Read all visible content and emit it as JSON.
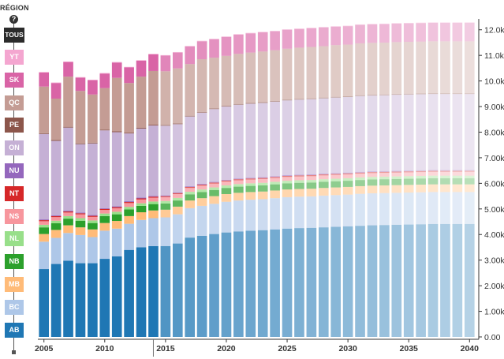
{
  "legend": {
    "title": "RÉGION",
    "help_icon": "question-icon",
    "help_glyph": "?",
    "all_label": "TOUS",
    "all_color": "#2b2b2b",
    "regions": [
      {
        "code": "YT",
        "color": "#f4a6d0"
      },
      {
        "code": "SK",
        "color": "#d964a6"
      },
      {
        "code": "QC",
        "color": "#c49c94"
      },
      {
        "code": "PE",
        "color": "#8c564b"
      },
      {
        "code": "ON",
        "color": "#c5b0d5"
      },
      {
        "code": "NU",
        "color": "#9467bd"
      },
      {
        "code": "NT",
        "color": "#d62728"
      },
      {
        "code": "NS",
        "color": "#f7969d"
      },
      {
        "code": "NL",
        "color": "#98df8a"
      },
      {
        "code": "NB",
        "color": "#2ca02c"
      },
      {
        "code": "MB",
        "color": "#ffbb78"
      },
      {
        "code": "BC",
        "color": "#aec7e8"
      },
      {
        "code": "AB",
        "color": "#1f77b4"
      }
    ]
  },
  "chart_data": {
    "type": "bar",
    "stacked": true,
    "x": [
      2005,
      2006,
      2007,
      2008,
      2009,
      2010,
      2011,
      2012,
      2013,
      2014,
      2015,
      2016,
      2017,
      2018,
      2019,
      2020,
      2021,
      2022,
      2023,
      2024,
      2025,
      2026,
      2027,
      2028,
      2029,
      2030,
      2031,
      2032,
      2033,
      2034,
      2035,
      2036,
      2037,
      2038,
      2039,
      2040
    ],
    "x_ticks": [
      "2005",
      "2010",
      "2015",
      "2020",
      "2025",
      "2030",
      "2035",
      "2040"
    ],
    "y_ticks": [
      "0.00",
      "1.00k",
      "2.00k",
      "3.00k",
      "4.00k",
      "5.00k",
      "6.00k",
      "7.00k",
      "8.00k",
      "9.00k",
      "10.0k",
      "11.0k",
      "12.0k"
    ],
    "ylim": [
      0,
      12300
    ],
    "grid": false,
    "highlight_year": 2014,
    "projection_start": 2015,
    "series": [
      {
        "name": "AB",
        "color": "#1f77b4",
        "values": [
          2650,
          2850,
          2980,
          2880,
          2880,
          3050,
          3150,
          3400,
          3500,
          3550,
          3550,
          3650,
          3880,
          3950,
          4020,
          4080,
          4120,
          4150,
          4170,
          4200,
          4230,
          4250,
          4260,
          4280,
          4300,
          4320,
          4340,
          4360,
          4370,
          4380,
          4390,
          4400,
          4410,
          4410,
          4410,
          4410
        ]
      },
      {
        "name": "BC",
        "color": "#aec7e8",
        "values": [
          1070,
          1020,
          1080,
          1100,
          1020,
          1100,
          1080,
          1020,
          1070,
          1090,
          1120,
          1140,
          1150,
          1170,
          1180,
          1200,
          1210,
          1210,
          1210,
          1220,
          1230,
          1230,
          1230,
          1240,
          1240,
          1240,
          1250,
          1250,
          1250,
          1250,
          1250,
          1250,
          1250,
          1250,
          1250,
          1250
        ]
      },
      {
        "name": "MB",
        "color": "#ffbb78",
        "values": [
          300,
          310,
          300,
          300,
          300,
          300,
          300,
          300,
          300,
          300,
          300,
          300,
          300,
          300,
          300,
          300,
          300,
          300,
          300,
          300,
          300,
          300,
          300,
          300,
          300,
          300,
          300,
          300,
          300,
          300,
          300,
          300,
          300,
          300,
          300,
          300
        ]
      },
      {
        "name": "NB",
        "color": "#2ca02c",
        "values": [
          260,
          260,
          260,
          260,
          250,
          270,
          260,
          260,
          250,
          250,
          240,
          240,
          240,
          240,
          240,
          240,
          240,
          240,
          240,
          240,
          240,
          240,
          240,
          240,
          240,
          240,
          240,
          240,
          240,
          240,
          240,
          240,
          240,
          240,
          240,
          240
        ]
      },
      {
        "name": "NL",
        "color": "#98df8a",
        "values": [
          100,
          100,
          100,
          100,
          100,
          100,
          100,
          100,
          100,
          100,
          100,
          100,
          100,
          100,
          100,
          100,
          100,
          100,
          100,
          100,
          100,
          100,
          100,
          100,
          100,
          100,
          100,
          100,
          100,
          100,
          100,
          100,
          100,
          100,
          100,
          100
        ]
      },
      {
        "name": "NS",
        "color": "#f7969d",
        "values": [
          140,
          140,
          140,
          150,
          140,
          140,
          140,
          150,
          150,
          150,
          150,
          150,
          150,
          150,
          150,
          150,
          150,
          150,
          150,
          150,
          150,
          150,
          150,
          150,
          150,
          150,
          150,
          150,
          150,
          150,
          150,
          150,
          150,
          150,
          150,
          150
        ]
      },
      {
        "name": "NT",
        "color": "#d62728",
        "values": [
          40,
          40,
          40,
          40,
          40,
          40,
          40,
          40,
          40,
          40,
          40,
          40,
          40,
          40,
          40,
          40,
          40,
          40,
          40,
          40,
          40,
          40,
          40,
          40,
          40,
          40,
          40,
          40,
          40,
          40,
          40,
          40,
          40,
          40,
          40,
          40
        ]
      },
      {
        "name": "NU",
        "color": "#9467bd",
        "values": [
          30,
          30,
          30,
          30,
          30,
          30,
          30,
          30,
          30,
          30,
          30,
          30,
          30,
          30,
          30,
          30,
          30,
          30,
          30,
          30,
          30,
          30,
          30,
          30,
          30,
          30,
          30,
          30,
          30,
          30,
          30,
          30,
          30,
          30,
          30,
          30
        ]
      },
      {
        "name": "ON",
        "color": "#c5b0d5",
        "values": [
          3340,
          2910,
          3250,
          2670,
          2800,
          3040,
          2900,
          2650,
          2700,
          2750,
          2720,
          2660,
          2720,
          2780,
          2840,
          2860,
          2880,
          2890,
          2900,
          2910,
          2920,
          2930,
          2940,
          2940,
          2950,
          2950,
          2960,
          2960,
          2960,
          2970,
          2970,
          2970,
          2970,
          2970,
          2970,
          2970
        ]
      },
      {
        "name": "PE",
        "color": "#8c564b",
        "values": [
          30,
          30,
          30,
          30,
          30,
          30,
          30,
          30,
          30,
          30,
          30,
          30,
          30,
          30,
          30,
          30,
          30,
          30,
          30,
          30,
          30,
          30,
          30,
          30,
          30,
          30,
          30,
          30,
          30,
          30,
          30,
          30,
          30,
          30,
          30,
          30
        ]
      },
      {
        "name": "QC",
        "color": "#c49c94",
        "values": [
          1820,
          1620,
          1960,
          2050,
          1880,
          1620,
          2090,
          1940,
          2000,
          2100,
          2100,
          2150,
          2020,
          2060,
          1980,
          1950,
          1960,
          1970,
          1980,
          1980,
          1990,
          2000,
          2010,
          2010,
          2020,
          2020,
          2030,
          2030,
          2030,
          2030,
          2030,
          2030,
          2030,
          2030,
          2030,
          2030
        ]
      },
      {
        "name": "SK",
        "color": "#d964a6",
        "values": [
          550,
          610,
          570,
          520,
          560,
          570,
          600,
          610,
          620,
          650,
          610,
          620,
          690,
          700,
          720,
          740,
          750,
          750,
          750,
          740,
          740,
          730,
          730,
          730,
          720,
          720,
          720,
          720,
          720,
          720,
          720,
          720,
          720,
          720,
          720,
          720
        ]
      },
      {
        "name": "YT",
        "color": "#f4a6d0",
        "values": [
          20,
          20,
          20,
          20,
          20,
          20,
          20,
          20,
          20,
          20,
          20,
          20,
          20,
          20,
          20,
          20,
          20,
          20,
          20,
          20,
          20,
          20,
          20,
          20,
          20,
          20,
          20,
          20,
          20,
          20,
          20,
          20,
          20,
          20,
          20,
          20
        ]
      }
    ]
  }
}
